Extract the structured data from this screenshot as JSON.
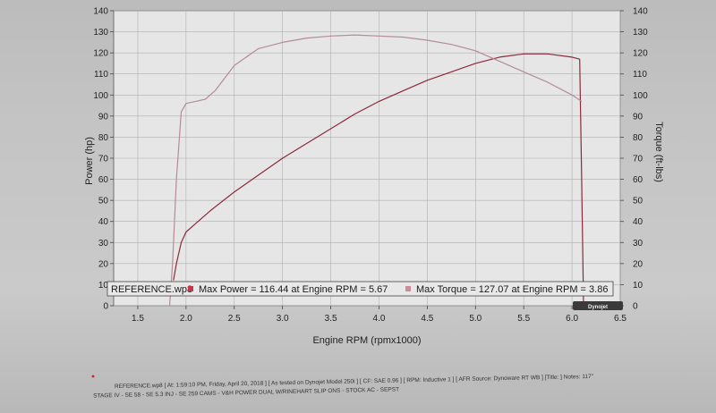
{
  "chart_data": {
    "type": "line",
    "xlabel": "Engine RPM (rpmx1000)",
    "ylabel_left": "Power (hp)",
    "ylabel_right": "Torque (ft-lbs)",
    "xlim": [
      1.25,
      6.5
    ],
    "ylim": [
      0,
      140
    ],
    "x_ticks": [
      "1.5",
      "2.0",
      "2.5",
      "3.0",
      "3.5",
      "4.0",
      "4.5",
      "5.0",
      "5.5",
      "6.0",
      "6.5"
    ],
    "y_ticks_left": [
      "0",
      "10",
      "20",
      "30",
      "40",
      "50",
      "60",
      "70",
      "80",
      "90",
      "100",
      "110",
      "120",
      "130",
      "140"
    ],
    "y_ticks_right": [
      "0",
      "10",
      "20",
      "30",
      "40",
      "50",
      "60",
      "70",
      "80",
      "90",
      "100",
      "110",
      "120",
      "130",
      "140"
    ],
    "grid": true,
    "series": [
      {
        "kind": "power",
        "color": "#8b2a3c",
        "x": [
          1.87,
          1.9,
          1.95,
          2.0,
          2.1,
          2.25,
          2.5,
          2.75,
          3.0,
          3.25,
          3.5,
          3.75,
          4.0,
          4.25,
          4.5,
          4.75,
          5.0,
          5.25,
          5.5,
          5.75,
          6.0,
          6.08,
          6.1,
          6.12
        ],
        "values": [
          12,
          20,
          30,
          35,
          39,
          45,
          54,
          62,
          70,
          77,
          84,
          91,
          97,
          102,
          107,
          111,
          115,
          118,
          119.5,
          119.5,
          118,
          117,
          60,
          0
        ]
      },
      {
        "kind": "torque",
        "color": "#b48c96",
        "x": [
          1.83,
          1.86,
          1.9,
          1.95,
          2.0,
          2.1,
          2.2,
          2.3,
          2.5,
          2.75,
          3.0,
          3.25,
          3.5,
          3.75,
          4.0,
          4.25,
          4.5,
          4.75,
          5.0,
          5.25,
          5.5,
          5.75,
          6.0,
          6.1
        ],
        "values": [
          0,
          20,
          60,
          92,
          96,
          97,
          98,
          102,
          114,
          122,
          125,
          127,
          128,
          128.5,
          128,
          127.5,
          126,
          124,
          121,
          116,
          111,
          106,
          100,
          97
        ]
      }
    ],
    "legend": {
      "file_label": "REFERENCE.wp8",
      "entries": [
        {
          "label": "Max Power = 116.44 at Engine RPM = 5.67",
          "color": "#c0384a"
        },
        {
          "label": "Max Torque = 127.07 at Engine RPM = 3.86",
          "color": "#d08a96"
        }
      ]
    },
    "legend_position": "bottom-center"
  },
  "logo_text": "Dynojet",
  "footer": {
    "line1": "REFERENCE.wp8 [ At: 1:59:10 PM, Friday, April 20, 2018 ] [ As tested on Dynojet Model 250i ] [ CF: SAE 0.96 ] [ RPM: Inductive 1 ] [ AFR Source: Dynoware RT WB ] [Title: ] Notes: 117\"",
    "line2": "STAGE IV - SE 58 - SE 5.3 INJ - SE 259 CAMS - V&H POWER DUAL W/RINEHART SLIP ONS - STOCK AC - SEPST"
  }
}
